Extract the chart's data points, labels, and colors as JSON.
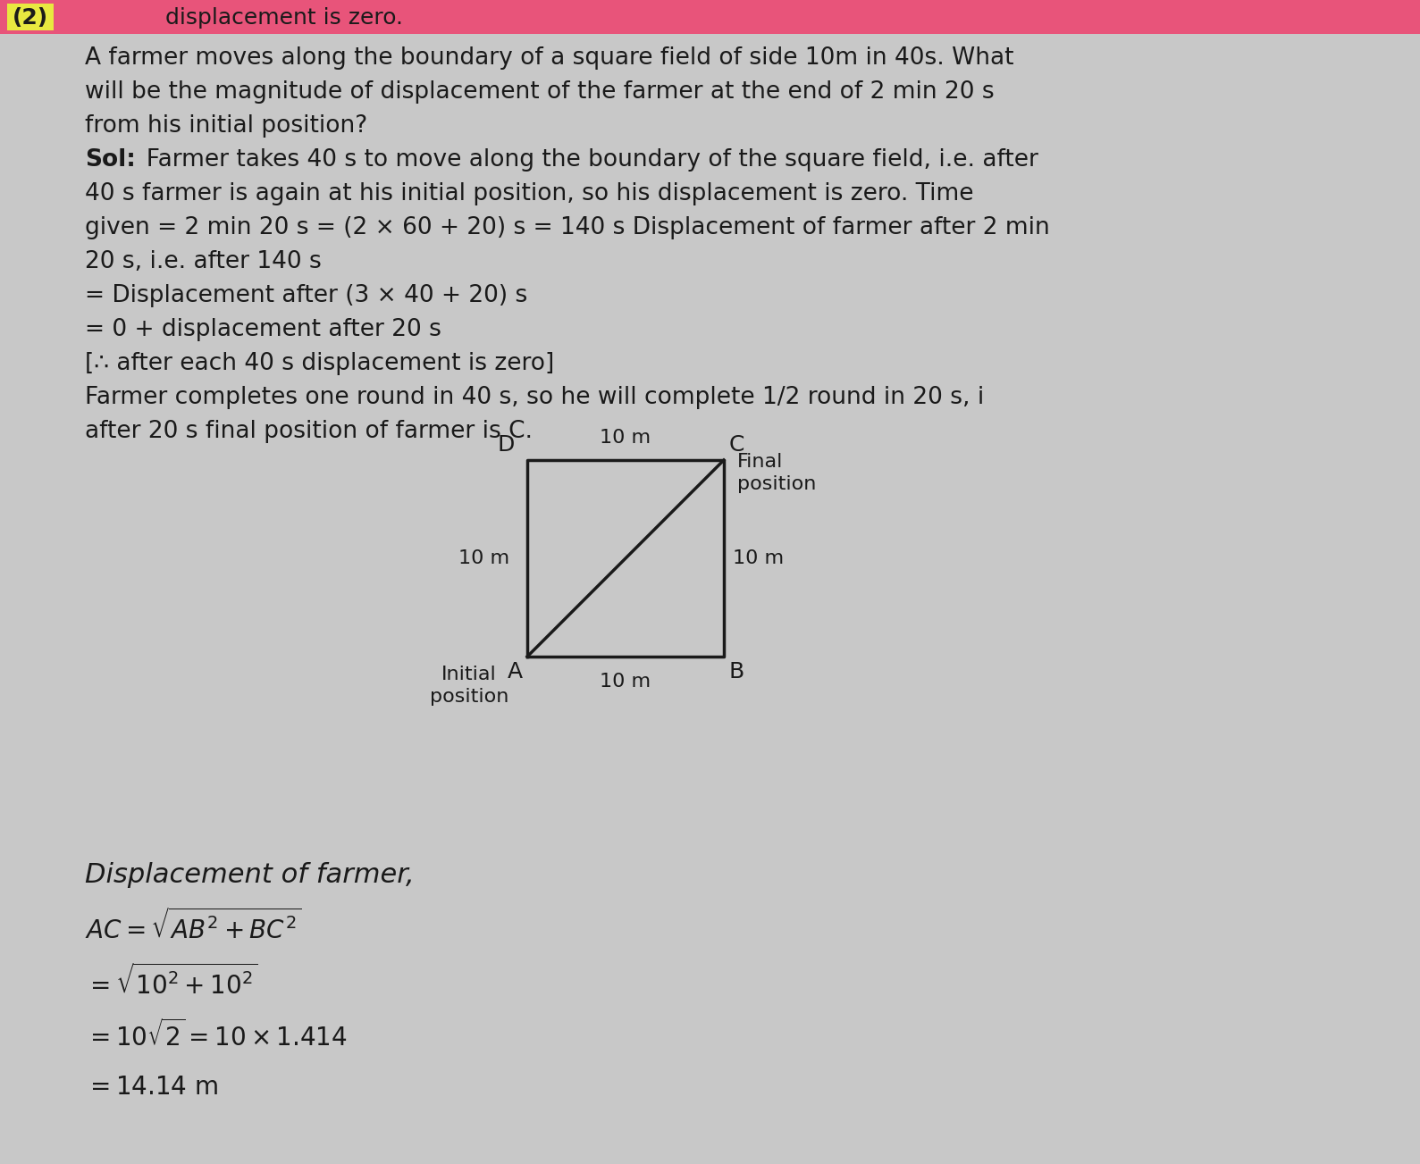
{
  "background_color": "#c8c8c8",
  "title_highlight_color": "#e8547a",
  "problem_number": "(2)",
  "problem_number_highlight": "#e8e840",
  "title_suffix": "displacement is zero.",
  "text_color": "#1a1a1a",
  "line_color": "#1a1a1a",
  "font_size_body": 19,
  "font_size_label": 15,
  "font_size_disp_title": 22,
  "font_size_math": 20,
  "body_lines": [
    [
      "normal",
      "A farmer moves along the boundary of a square field of side 10m in 40s. What"
    ],
    [
      "normal",
      "will be the magnitude of displacement of the farmer at the end of 2 min 20 s"
    ],
    [
      "normal",
      "from his initial position?"
    ],
    [
      "bold_prefix",
      "Sol:",
      "  Farmer takes 40 s to move along the boundary of the square field, i.e. after"
    ],
    [
      "normal",
      "40 s farmer is again at his initial position, so his displacement is zero. Time"
    ],
    [
      "normal",
      "given = 2 min 20 s = (2 × 60 + 20) s = 140 s Displacement of farmer after 2 min"
    ],
    [
      "normal",
      "20 s, i.e. after 140 s"
    ],
    [
      "normal",
      "= Displacement after (3 × 40 + 20) s"
    ],
    [
      "normal",
      "= 0 + displacement after 20 s"
    ],
    [
      "normal",
      "[∴ after each 40 s displacement is zero]"
    ],
    [
      "normal",
      "Farmer completes one round in 40 s, so he will complete 1/2 round in 20 s, i"
    ],
    [
      "normal",
      "after 20 s final position of farmer is C."
    ]
  ],
  "square_label_A": "A",
  "square_label_B": "B",
  "square_label_C": "C",
  "square_label_D": "D",
  "label_10m_top": "10 m",
  "label_10m_bottom": "10 m",
  "label_10m_left": "10 m",
  "label_10m_right": "10 m",
  "initial_position": "Initial\nposition",
  "final_position": "Final\nposition",
  "displacement_title": "Displacement of farmer,",
  "math_lines": [
    "AC = \\sqrt{AB^2 + BC^2}",
    "= \\sqrt{10^2 + 10^2}",
    "= 10\\sqrt{2} = 10 \\times 1.414",
    "= 14.14 m"
  ]
}
